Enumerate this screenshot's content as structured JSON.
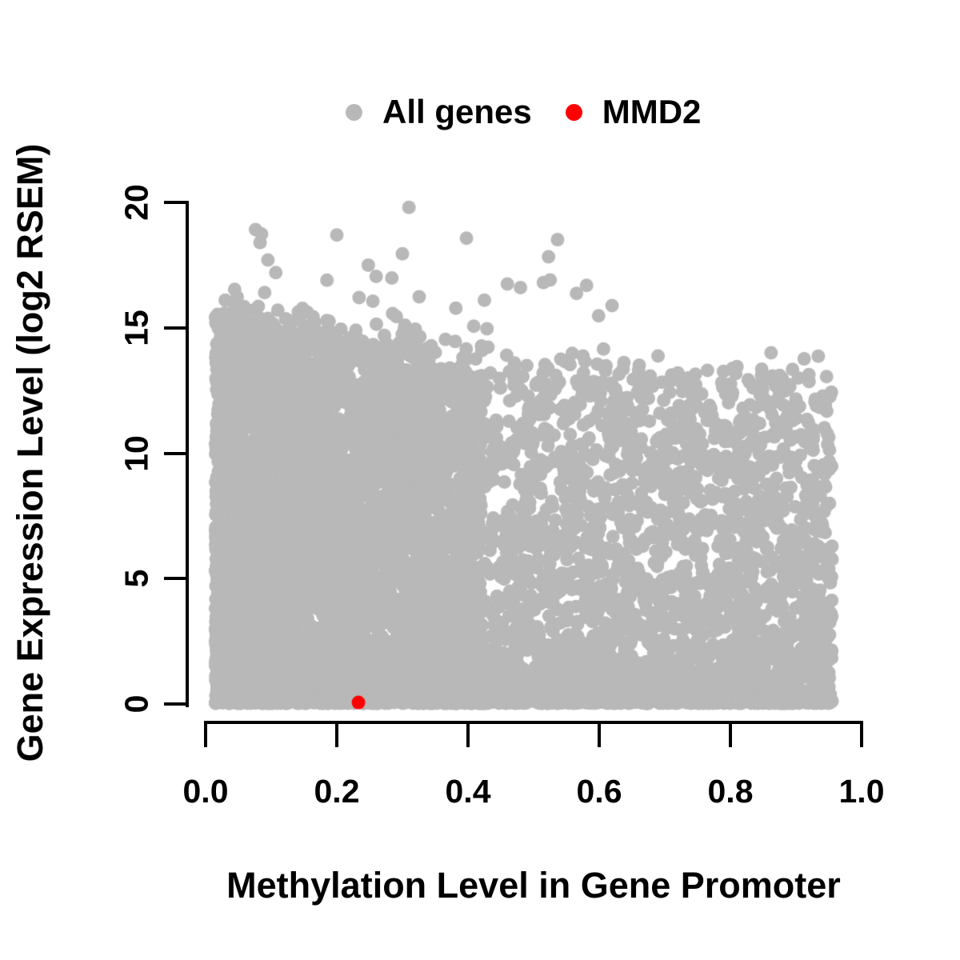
{
  "chart_data": {
    "type": "scatter",
    "title": "",
    "xlabel": "Methylation Level in Gene Promoter",
    "ylabel": "Gene Expression Level (log2 RSEM)",
    "xlim": [
      0.0,
      1.0
    ],
    "ylim": [
      0,
      20
    ],
    "x_tick_labels": [
      "0.0",
      "0.2",
      "0.4",
      "0.6",
      "0.8",
      "1.0"
    ],
    "x_tick_values": [
      0.0,
      0.2,
      0.4,
      0.6,
      0.8,
      1.0
    ],
    "y_tick_labels": [
      "0",
      "5",
      "10",
      "15",
      "20"
    ],
    "y_tick_values": [
      0,
      5,
      10,
      15,
      20
    ],
    "grid": false,
    "background": "#ffffff",
    "axis_color": "#000000",
    "legend": {
      "position": "top-center"
    },
    "series": [
      {
        "name": "All genes",
        "color": "#b8b8b8",
        "render": "dense-cloud",
        "n_points_approx": 8600,
        "cloud_spec": {
          "seed": 42,
          "n_main": 7600,
          "n_bottom": 950,
          "n_top_outliers": 46,
          "n_right_outliers": 26,
          "x_min": 0.015,
          "x_max": 0.955,
          "x_split": 0.42,
          "left_frac": 0.67,
          "left_x_pow": 1.22,
          "right_x_pow": 0.92,
          "left_y_pow": 1.22,
          "right_y_pow": 1.55,
          "env_left_b": 15.8,
          "env_left_m": -5.0,
          "env_right_b": 13.3,
          "env_right_m": -0.9,
          "env_jitter": 0.8,
          "y_min": 0.03,
          "point_radius": 8.5
        },
        "fixed_outliers": [
          [
            0.31,
            19.8
          ],
          [
            0.2,
            18.7
          ],
          [
            0.3,
            17.95
          ],
          [
            0.095,
            17.7
          ],
          [
            0.107,
            17.2
          ],
          [
            0.248,
            17.5
          ],
          [
            0.26,
            17.05
          ],
          [
            0.185,
            16.9
          ],
          [
            0.09,
            16.4
          ],
          [
            0.03,
            16.1
          ],
          [
            0.46,
            16.75
          ],
          [
            0.48,
            16.6
          ],
          [
            0.515,
            16.8
          ],
          [
            0.425,
            16.1
          ],
          [
            0.66,
            13.3
          ],
          [
            0.72,
            13.2
          ],
          [
            0.735,
            13.0
          ],
          [
            0.765,
            13.3
          ],
          [
            0.81,
            13.45
          ],
          [
            0.862,
            14.0
          ],
          [
            0.875,
            13.1
          ]
        ]
      },
      {
        "name": "MMD2",
        "color": "#ff0000",
        "render": "points",
        "points": [
          [
            0.233,
            0.06
          ]
        ]
      }
    ]
  }
}
